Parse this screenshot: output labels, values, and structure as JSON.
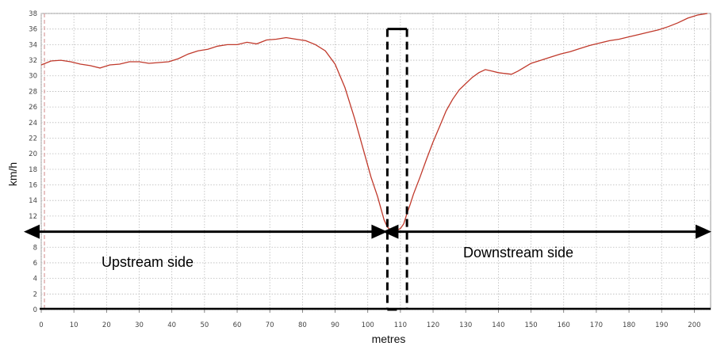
{
  "chart_data": {
    "type": "line",
    "xlabel": "metres",
    "ylabel": "km/h",
    "xlim": [
      0,
      205
    ],
    "ylim": [
      0,
      38
    ],
    "x_ticks": [
      0,
      10,
      20,
      30,
      40,
      50,
      60,
      70,
      80,
      90,
      100,
      110,
      120,
      130,
      140,
      150,
      160,
      170,
      180,
      190,
      200
    ],
    "y_ticks": [
      0,
      2,
      4,
      6,
      8,
      10,
      12,
      14,
      16,
      18,
      20,
      22,
      24,
      26,
      28,
      30,
      32,
      34,
      36,
      38
    ],
    "grid": true,
    "line_color": "#c0392b",
    "series": [
      {
        "x": [
          0,
          3,
          6,
          9,
          12,
          15,
          18,
          21,
          24,
          27,
          30,
          33,
          36,
          39,
          42,
          45,
          48,
          51,
          54,
          57,
          60,
          63,
          66,
          69,
          72,
          75,
          78,
          81,
          84,
          87,
          90,
          93,
          96,
          99,
          101,
          103,
          104,
          105,
          106,
          107,
          108,
          109,
          110,
          111,
          112,
          113,
          114,
          116,
          118,
          120,
          122,
          124,
          126,
          128,
          130,
          132,
          134,
          136,
          138,
          140,
          142,
          144,
          146,
          148,
          150,
          153,
          156,
          159,
          162,
          165,
          168,
          171,
          174,
          177,
          180,
          183,
          186,
          189,
          192,
          195,
          198,
          201,
          204
        ],
        "y": [
          31.4,
          31.9,
          32.0,
          31.8,
          31.5,
          31.3,
          31.0,
          31.4,
          31.5,
          31.8,
          31.8,
          31.6,
          31.7,
          31.8,
          32.2,
          32.8,
          33.2,
          33.4,
          33.8,
          34.0,
          34.0,
          34.3,
          34.1,
          34.6,
          34.7,
          34.9,
          34.7,
          34.5,
          34.0,
          33.2,
          31.5,
          28.5,
          24.5,
          20.0,
          17.0,
          14.5,
          13.0,
          11.5,
          10.6,
          10.2,
          10.1,
          10.2,
          10.4,
          11.0,
          12.3,
          13.5,
          14.8,
          17.0,
          19.3,
          21.5,
          23.5,
          25.5,
          27.0,
          28.2,
          29.0,
          29.8,
          30.4,
          30.8,
          30.6,
          30.4,
          30.3,
          30.2,
          30.6,
          31.1,
          31.6,
          32.0,
          32.4,
          32.8,
          33.1,
          33.5,
          33.9,
          34.2,
          34.5,
          34.7,
          35.0,
          35.3,
          35.6,
          35.9,
          36.3,
          36.8,
          37.4,
          37.8,
          38.0
        ]
      }
    ],
    "annotations": {
      "upstream_label": "Upstream side",
      "downstream_label": "Downstream side",
      "arrow_y": 10,
      "upstream_arrow_x": [
        0,
        106
      ],
      "downstream_arrow_x": [
        106,
        206
      ],
      "dashed_box_x": [
        106,
        112
      ],
      "dashed_box_y": [
        0,
        36
      ]
    }
  }
}
